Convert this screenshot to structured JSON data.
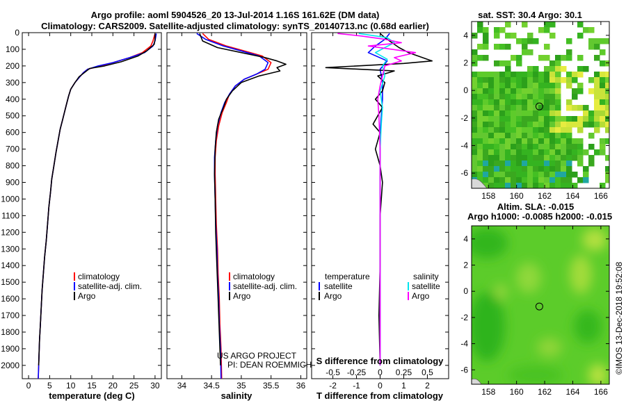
{
  "title": {
    "line1": "Argo profile: aoml 5904526_20 13-Jul-2014 1.16S 161.62E (DM data)",
    "line2": "Climatology: CARS2009. Satellite-adjusted climatology: synTS_20140713.nc (0.68d earlier)"
  },
  "colors": {
    "climatology": "#ff0000",
    "satellite": "#0000ff",
    "argo": "#000000",
    "sat_salinity": "#00e5ee",
    "argo_salinity": "#ff00ff"
  },
  "watermark": {
    "line1": "US ARGO PROJECT",
    "line2": "PI: DEAN ROEMMICH"
  },
  "credit": "©IMOS 13-Dec-2018 19:52:08",
  "chart_data": [
    {
      "id": "temperature",
      "type": "line",
      "xlabel": "temperature (deg C)",
      "ylabel": "",
      "xlim": [
        -1.5,
        31.5
      ],
      "ylim": [
        2080,
        0
      ],
      "xticks": [
        0,
        5,
        10,
        15,
        20,
        25,
        30
      ],
      "xticklabels": [
        "0",
        "5",
        "10",
        "15",
        "20",
        "25",
        "30"
      ],
      "yticks": [
        0,
        100,
        200,
        300,
        400,
        500,
        600,
        700,
        800,
        900,
        1000,
        1100,
        1200,
        1300,
        1400,
        1500,
        1600,
        1700,
        1800,
        1900,
        2000
      ],
      "yticklabels": [
        "0",
        "100",
        "200",
        "300",
        "400",
        "500",
        "600",
        "700",
        "800",
        "900",
        "1000",
        "1100",
        "1200",
        "1300",
        "1400",
        "1500",
        "1600",
        "1700",
        "1800",
        "1900",
        "2000"
      ],
      "legend": [
        "climatology",
        "satellite-adj. clim.",
        "Argo"
      ],
      "series": [
        {
          "name": "climatology",
          "color": "#ff0000",
          "x": [
            30,
            29.5,
            29,
            27,
            24,
            20,
            17,
            14,
            13,
            12,
            11,
            10,
            9.5,
            9,
            8.5,
            8,
            7.5,
            7,
            6.5,
            6,
            5.5,
            5.2,
            4.8,
            4.5,
            4.2,
            3.8,
            3.5,
            3.2,
            3,
            2.8,
            2.6,
            2.3
          ],
          "y": [
            5,
            50,
            80,
            120,
            150,
            180,
            200,
            220,
            240,
            270,
            300,
            340,
            380,
            430,
            480,
            530,
            580,
            650,
            720,
            800,
            880,
            960,
            1050,
            1150,
            1250,
            1350,
            1450,
            1550,
            1650,
            1750,
            1850,
            2080
          ]
        },
        {
          "name": "satellite-adj. clim.",
          "color": "#0000ff",
          "x": [
            30.3,
            30,
            29.5,
            27.5,
            24,
            20,
            16.5,
            14,
            13,
            12,
            11,
            10,
            9.5,
            9,
            8.5,
            8,
            7.5,
            7,
            6.5,
            6,
            5.5,
            5.2,
            4.8,
            4.5,
            4.2,
            3.8,
            3.5,
            3.2,
            3,
            2.8,
            2.6,
            2.3
          ],
          "y": [
            5,
            50,
            80,
            120,
            150,
            180,
            200,
            220,
            240,
            270,
            300,
            340,
            380,
            430,
            480,
            530,
            580,
            650,
            720,
            800,
            880,
            960,
            1050,
            1150,
            1250,
            1350,
            1450,
            1550,
            1650,
            1750,
            1850,
            2080
          ]
        },
        {
          "name": "Argo",
          "color": "#000000",
          "x": [
            30,
            30,
            29.8,
            28,
            26,
            22,
            18,
            14.5,
            13.5,
            12,
            11,
            10,
            9.5,
            9,
            8.5,
            8,
            7.5,
            7,
            6.5,
            6,
            5.5,
            5.2,
            4.8,
            4.5,
            4.2,
            3.8,
            3.5,
            3.2,
            3,
            2.8,
            2.6,
            2.4
          ],
          "y": [
            5,
            40,
            70,
            110,
            140,
            175,
            200,
            215,
            235,
            265,
            300,
            340,
            380,
            430,
            480,
            530,
            580,
            650,
            720,
            800,
            880,
            960,
            1050,
            1150,
            1250,
            1350,
            1450,
            1550,
            1650,
            1750,
            1850,
            2000
          ]
        }
      ]
    },
    {
      "id": "salinity",
      "type": "line",
      "xlabel": "salinity",
      "xlim": [
        33.75,
        36.1
      ],
      "ylim": [
        2080,
        0
      ],
      "xticks": [
        34,
        34.5,
        35,
        35.5,
        36
      ],
      "xticklabels": [
        "34",
        "34.5",
        "35",
        "35.5",
        "36"
      ],
      "legend": [
        "climatology",
        "satellite-adj. clim.",
        "Argo"
      ],
      "series": [
        {
          "name": "climatology",
          "color": "#ff0000",
          "x": [
            34.35,
            34.45,
            34.75,
            35.05,
            35.35,
            35.5,
            35.45,
            35.25,
            35.05,
            34.9,
            34.8,
            34.75,
            34.68,
            34.62,
            34.58,
            34.56,
            34.56,
            34.57,
            34.58,
            34.6,
            34.61,
            34.63,
            34.64,
            34.66,
            34.67
          ],
          "y": [
            5,
            40,
            80,
            110,
            140,
            180,
            220,
            250,
            280,
            320,
            370,
            420,
            480,
            560,
            650,
            750,
            850,
            1000,
            1150,
            1300,
            1450,
            1600,
            1750,
            1900,
            2080
          ]
        },
        {
          "name": "satellite-adj. clim.",
          "color": "#0000ff",
          "x": [
            34.25,
            34.4,
            34.7,
            35.0,
            35.3,
            35.45,
            35.4,
            35.25,
            35.05,
            34.9,
            34.8,
            34.72,
            34.66,
            34.6,
            34.57,
            34.55,
            34.55,
            34.56,
            34.57,
            34.59,
            34.6,
            34.62,
            34.63,
            34.65,
            34.66
          ],
          "y": [
            5,
            40,
            80,
            110,
            140,
            180,
            220,
            250,
            280,
            320,
            370,
            420,
            480,
            560,
            650,
            750,
            850,
            1000,
            1150,
            1300,
            1450,
            1600,
            1750,
            1900,
            2080
          ]
        },
        {
          "name": "Argo",
          "color": "#000000",
          "x": [
            34.3,
            34.35,
            34.6,
            35.0,
            35.4,
            35.6,
            35.75,
            35.6,
            35.65,
            35.3,
            35.0,
            34.85,
            34.75,
            34.7,
            34.62,
            34.58,
            34.56,
            34.55,
            34.56,
            34.57,
            34.59,
            34.61,
            34.63,
            34.65
          ],
          "y": [
            5,
            50,
            90,
            120,
            150,
            170,
            190,
            210,
            230,
            260,
            300,
            350,
            400,
            450,
            520,
            600,
            700,
            850,
            1000,
            1200,
            1400,
            1600,
            1800,
            2000
          ]
        }
      ]
    },
    {
      "id": "difference",
      "type": "line",
      "xlabel": "T difference from climatology",
      "xlabel2": "S difference from climatology",
      "xlim": [
        -2.9,
        2.9
      ],
      "ylim": [
        2080,
        0
      ],
      "xticks": [
        -2,
        -1,
        0,
        1,
        2
      ],
      "xticklabels": [
        "-2",
        "-1",
        "0",
        "1",
        "2"
      ],
      "sticks": [
        "-0.5",
        "-0.25",
        "0",
        "0.25",
        "0.5"
      ],
      "legend_titles": [
        "temperature",
        "salinity"
      ],
      "legend_left": [
        "satellite",
        "Argo"
      ],
      "legend_right": [
        "satellite",
        "Argo"
      ],
      "series": [
        {
          "name": "T satellite",
          "color": "#0000ff",
          "x": [
            0.4,
            0.2,
            -0.2,
            -0.5,
            0.3,
            0.0,
            0.1,
            0.1,
            0.05,
            0.0,
            0.0,
            0.0,
            0.0,
            0.0,
            0.0,
            0.0
          ],
          "y": [
            5,
            40,
            80,
            120,
            170,
            220,
            300,
            400,
            500,
            600,
            800,
            1000,
            1200,
            1500,
            1800,
            2000
          ]
        },
        {
          "name": "T Argo",
          "color": "#000000",
          "x": [
            0,
            0.2,
            0.5,
            0.8,
            1.2,
            2.2,
            1.0,
            -2.3,
            0.6,
            -0.1,
            0.2,
            0.1,
            -0.2,
            0.1,
            -0.1,
            -0.3,
            0.0,
            -0.2,
            0.0,
            0.1,
            0.0,
            0.0,
            -0.05,
            0.0
          ],
          "y": [
            5,
            30,
            60,
            90,
            120,
            170,
            185,
            210,
            230,
            260,
            300,
            350,
            400,
            450,
            500,
            550,
            600,
            700,
            800,
            900,
            1100,
            1400,
            1700,
            2000
          ]
        },
        {
          "name": "S satellite",
          "color": "#00e5ee",
          "x": [
            -0.9,
            0.3,
            0.6,
            0.2,
            -0.2,
            0.3,
            0.1,
            0.2,
            0.0,
            0.1,
            0.05,
            0.0,
            0.0,
            0.0,
            0.0,
            0.0
          ],
          "y": [
            5,
            30,
            60,
            90,
            120,
            160,
            200,
            260,
            350,
            450,
            550,
            700,
            900,
            1200,
            1600,
            2000
          ]
        },
        {
          "name": "S Argo",
          "color": "#ff00ff",
          "x": [
            -1.8,
            -0.8,
            0.2,
            0.9,
            -0.5,
            0.5,
            1.5,
            0.6,
            0.9,
            0.2,
            0.1,
            0.0,
            -0.1,
            -0.05,
            0.0,
            0.0,
            0.0
          ],
          "y": [
            5,
            20,
            40,
            60,
            80,
            100,
            120,
            150,
            170,
            200,
            260,
            320,
            400,
            500,
            700,
            1000,
            2000
          ]
        }
      ]
    },
    {
      "id": "sst_map",
      "type": "heatmap",
      "title": "sat. SST: 30.4  Argo: 30.1",
      "xlim": [
        156.8,
        166.6
      ],
      "ylim": [
        -7.1,
        5.0
      ],
      "xticks": [
        158,
        160,
        162,
        164,
        166
      ],
      "yticks": [
        4,
        2,
        0,
        -2,
        -4,
        -6
      ],
      "xticklabels": [
        "158",
        "160",
        "162",
        "164",
        "166"
      ],
      "yticklabels": [
        "4",
        "2",
        "0",
        "-2",
        "-4",
        "-6"
      ],
      "marker": {
        "lon": 161.62,
        "lat": -1.16
      }
    },
    {
      "id": "sla_map",
      "type": "heatmap",
      "title": "Altim. SLA: -0.015",
      "subtitle": "Argo h1000: -0.0085  h2000: -0.015",
      "xlim": [
        156.8,
        166.6
      ],
      "ylim": [
        -7.1,
        5.0
      ],
      "xticks": [
        158,
        160,
        162,
        164,
        166
      ],
      "yticks": [
        4,
        2,
        0,
        -2,
        -4,
        -6
      ],
      "xticklabels": [
        "158",
        "160",
        "162",
        "164",
        "166"
      ],
      "yticklabels": [
        "4",
        "2",
        "0",
        "-2",
        "-4",
        "-6"
      ],
      "marker": {
        "lon": 161.62,
        "lat": -1.16
      }
    }
  ]
}
